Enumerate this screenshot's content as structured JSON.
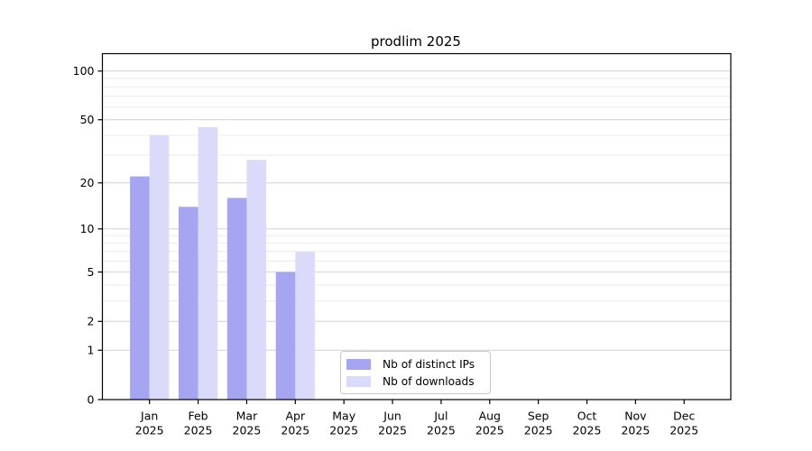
{
  "figure": {
    "background": "#ffffff"
  },
  "chart_data": {
    "type": "bar",
    "title": "prodlim 2025",
    "categories": [
      "Jan",
      "Feb",
      "Mar",
      "Apr",
      "May",
      "Jun",
      "Jul",
      "Aug",
      "Sep",
      "Oct",
      "Nov",
      "Dec"
    ],
    "x_tick_year": "2025",
    "series": [
      {
        "name": "Nb of distinct IPs",
        "color": "#a5a5f2",
        "values": [
          22,
          14,
          16,
          5,
          0,
          0,
          0,
          0,
          0,
          0,
          0,
          0
        ]
      },
      {
        "name": "Nb of downloads",
        "color": "#dadafa",
        "values": [
          40,
          45,
          28,
          7,
          0,
          0,
          0,
          0,
          0,
          0,
          0,
          0
        ]
      }
    ],
    "yscale": "log1p",
    "ylim": [
      0,
      128
    ],
    "yticks": [
      0,
      1,
      2,
      5,
      10,
      20,
      50,
      100
    ],
    "minor_yticks": [
      3,
      4,
      6,
      7,
      8,
      9,
      30,
      40,
      60,
      70,
      80,
      90
    ],
    "grid": true,
    "legend_position": "inside axes, lower center",
    "colors": {
      "major_grid": "#d2d2d2",
      "minor_grid": "#ebebeb",
      "axis": "#000000",
      "text": "#000000",
      "legend_border": "#c9c9c9",
      "background": "#ffffff"
    }
  }
}
